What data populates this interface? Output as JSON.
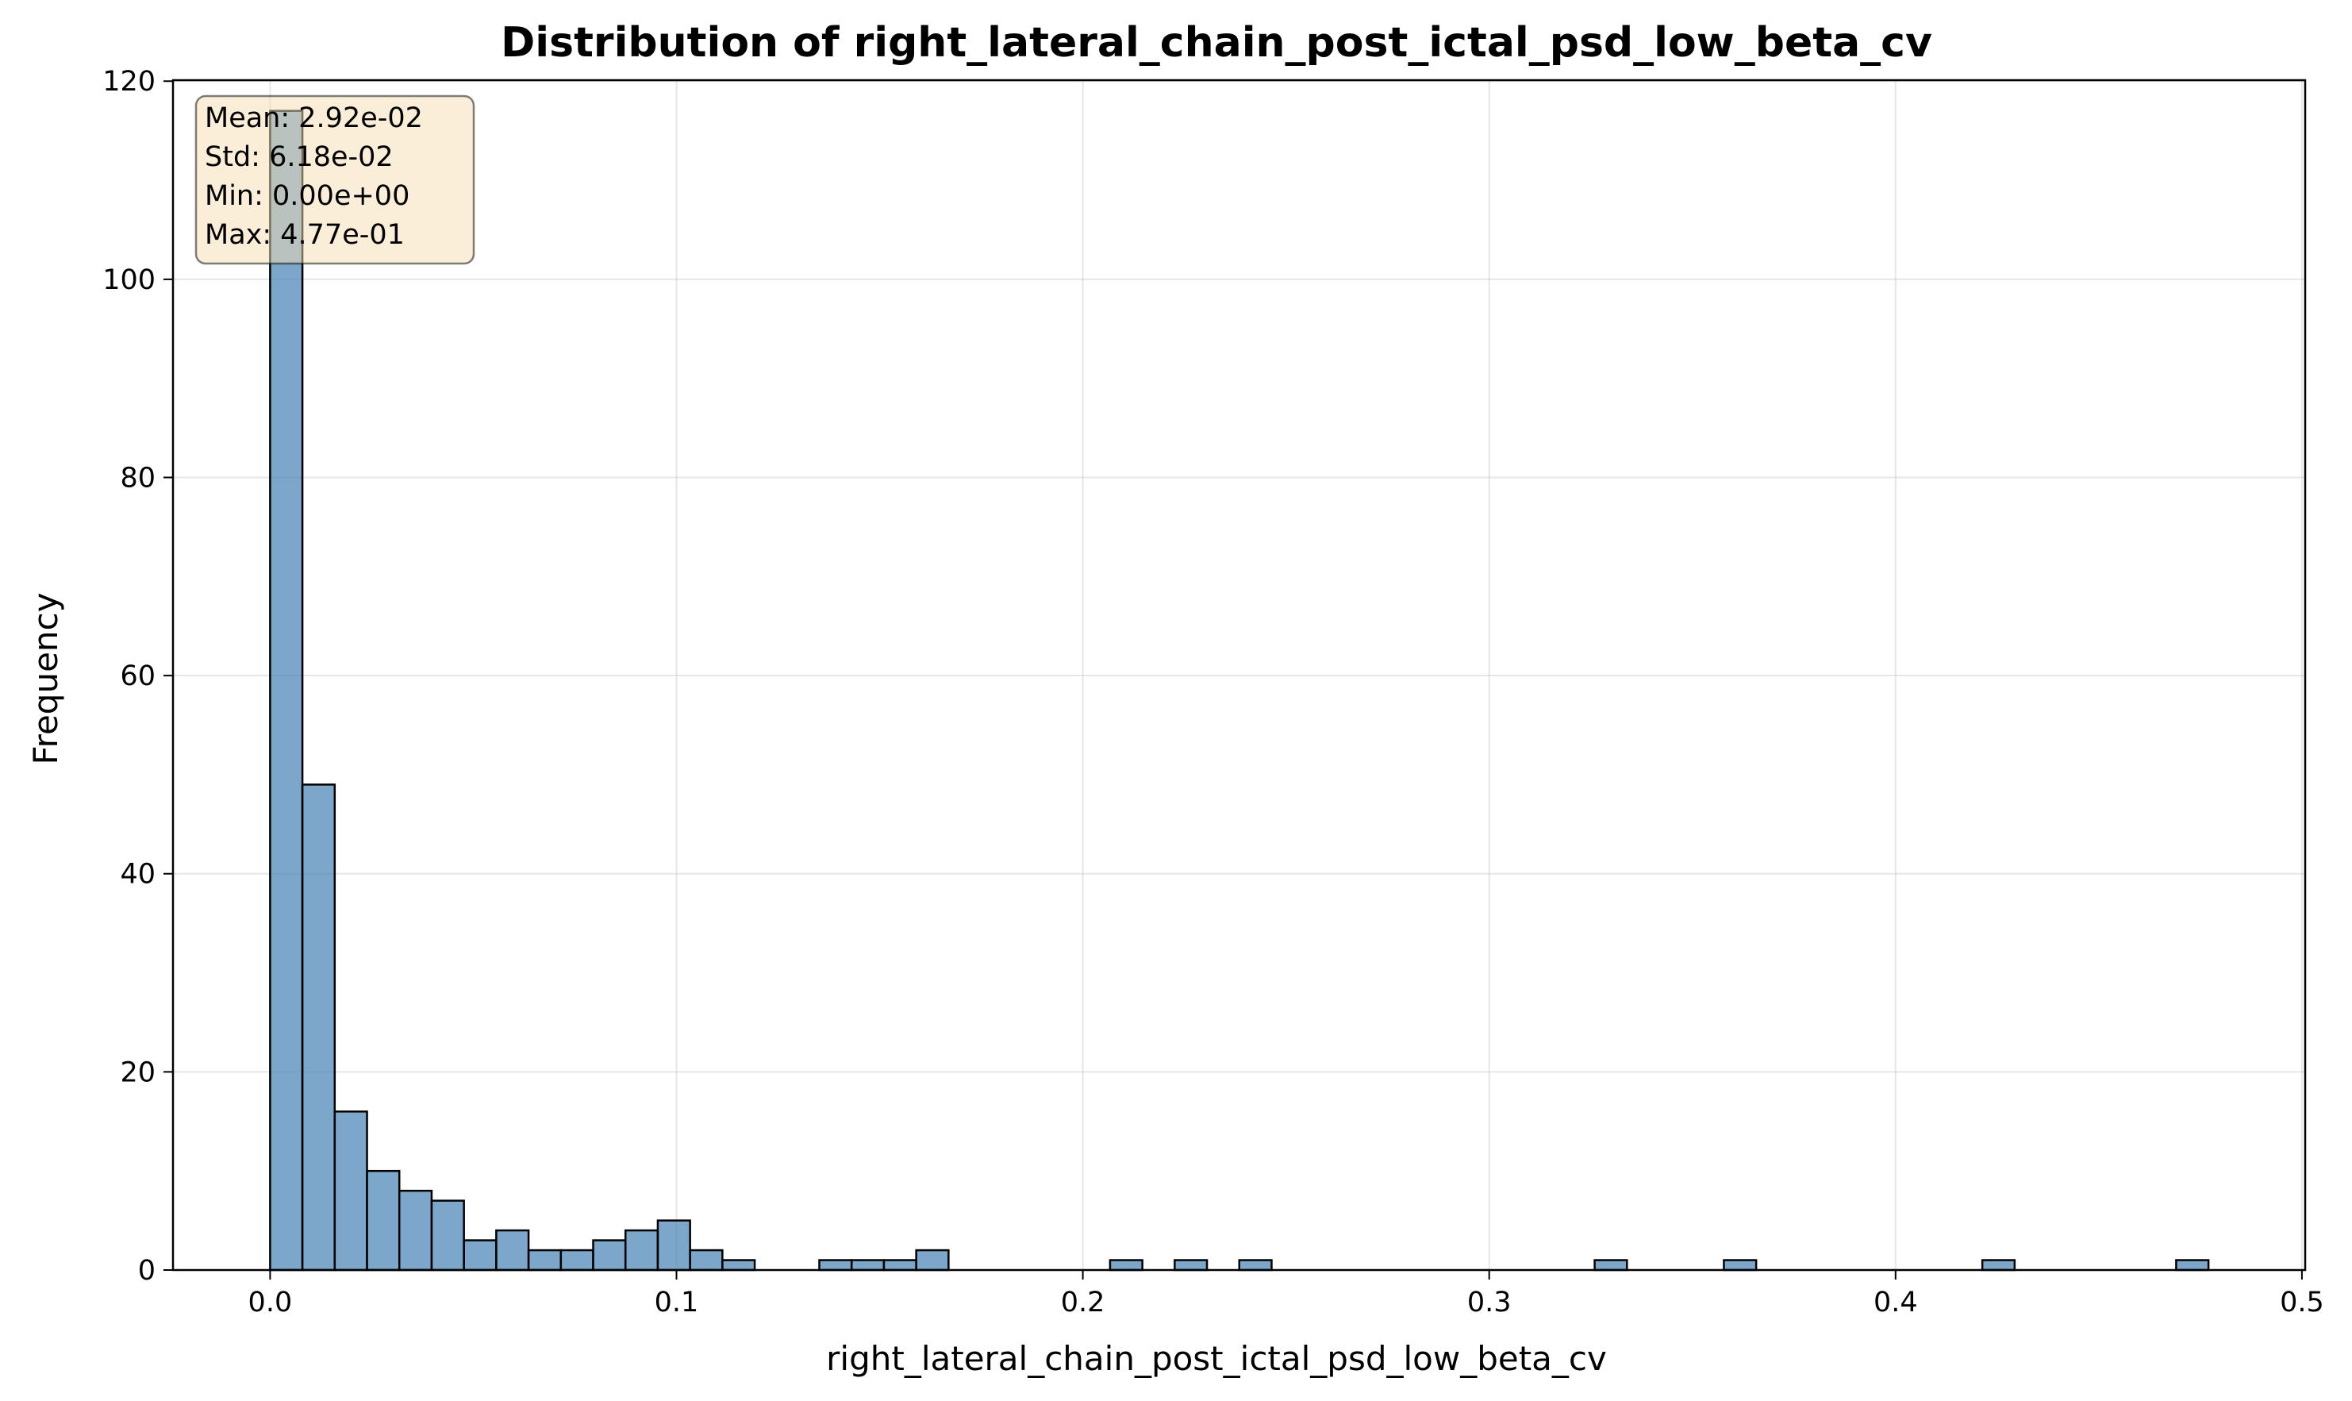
{
  "chart_data": {
    "type": "bar",
    "title": "Distribution of right_lateral_chain_post_ictal_psd_low_beta_cv",
    "xlabel": "right_lateral_chain_post_ictal_psd_low_beta_cv",
    "ylabel": "Frequency",
    "xlim": [
      -0.0239,
      0.5008
    ],
    "ylim": [
      0,
      120.1
    ],
    "xticks": [
      0.0,
      0.1,
      0.2,
      0.3,
      0.4,
      0.5
    ],
    "xtick_labels": [
      "0.0",
      "0.1",
      "0.2",
      "0.3",
      "0.4",
      "0.5"
    ],
    "yticks": [
      0,
      20,
      40,
      60,
      80,
      100,
      120
    ],
    "ytick_labels": [
      "0",
      "20",
      "40",
      "60",
      "80",
      "100",
      "120"
    ],
    "grid": true,
    "bin_width": 0.00795,
    "bin_start": 0.0,
    "values": [
      117,
      49,
      16,
      10,
      8,
      7,
      3,
      4,
      2,
      2,
      3,
      4,
      5,
      2,
      1,
      0,
      0,
      1,
      1,
      1,
      2,
      0,
      0,
      0,
      0,
      0,
      1,
      0,
      1,
      0,
      1,
      0,
      0,
      0,
      0,
      0,
      0,
      0,
      0,
      0,
      0,
      1,
      0,
      0,
      0,
      1,
      0,
      0,
      0,
      0,
      0,
      0,
      0,
      1,
      0,
      0,
      0,
      0,
      0,
      1
    ],
    "bar_color": "#4682b4",
    "stats_box": {
      "position": "top-left",
      "lines": [
        "Mean: 2.92e-02",
        "Std: 6.18e-02",
        "Min: 0.00e+00",
        "Max: 4.77e-01"
      ],
      "background": "#f5deb3"
    }
  }
}
